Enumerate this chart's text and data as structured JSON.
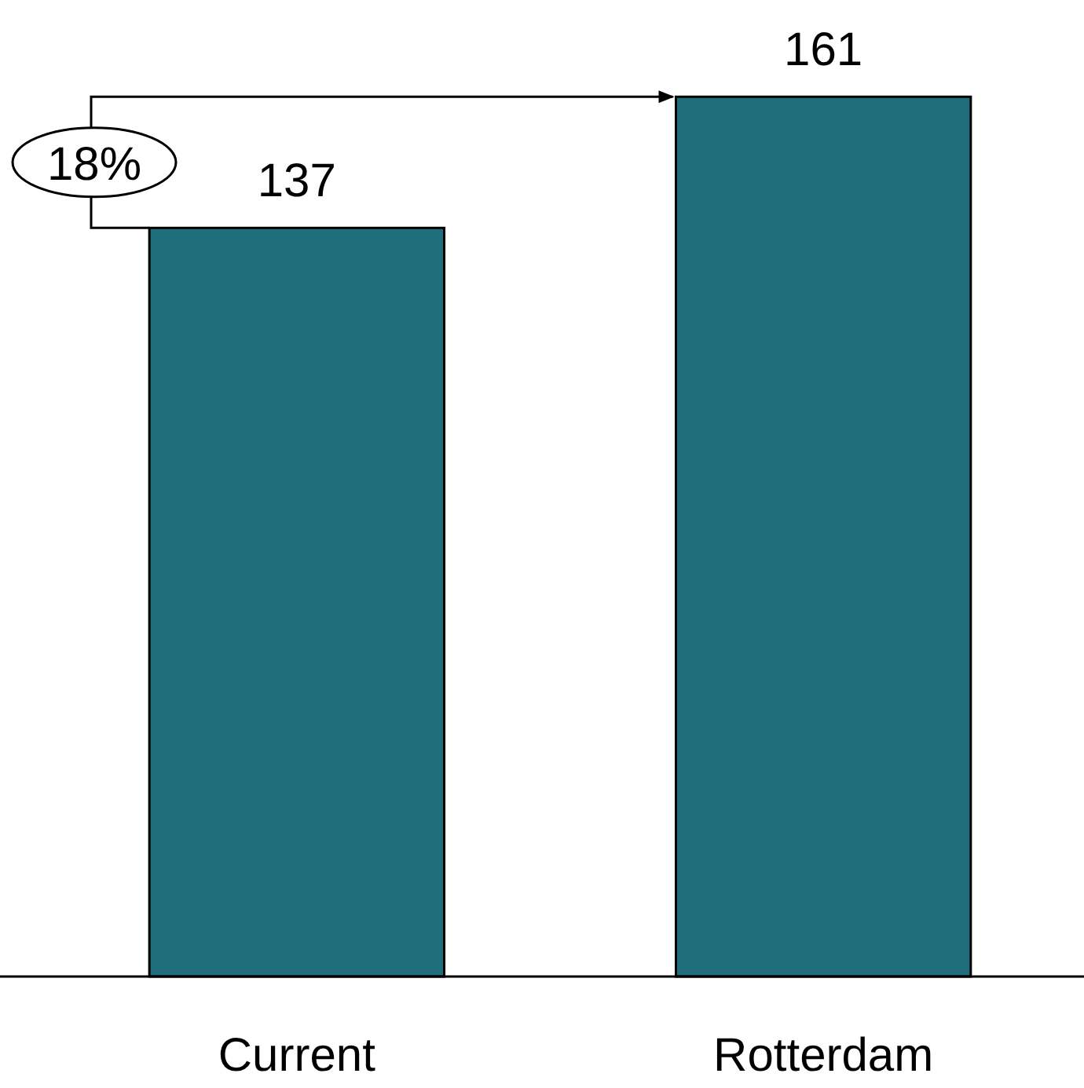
{
  "chart_data": {
    "type": "bar",
    "categories": [
      "Current",
      "Rotterdam"
    ],
    "values": [
      137,
      161
    ],
    "color": "#1f6e7c",
    "data_labels": true,
    "annotations": [
      "18%"
    ]
  }
}
